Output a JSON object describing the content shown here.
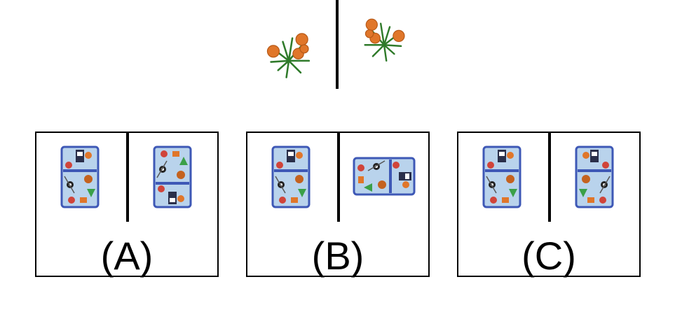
{
  "question": {
    "left_item_icon": "orange-flower-bush-icon",
    "right_item_icon": "orange-flower-bush-mirrored-icon"
  },
  "options": [
    {
      "label": "(A)",
      "left_icon": "lunch-bag-icon",
      "right_icon": "lunch-bag-flipped-vertical-icon"
    },
    {
      "label": "(B)",
      "left_icon": "lunch-bag-icon",
      "right_icon": "lunch-bag-rotated-icon"
    },
    {
      "label": "(C)",
      "left_icon": "lunch-bag-icon",
      "right_icon": "lunch-bag-mirrored-icon"
    }
  ],
  "colors": {
    "line": "#000000",
    "bag_fill": "#b9d3ec",
    "bag_border": "#3e58b6",
    "flower_orange": "#e0762a",
    "leaf_green": "#2f7a2a"
  }
}
